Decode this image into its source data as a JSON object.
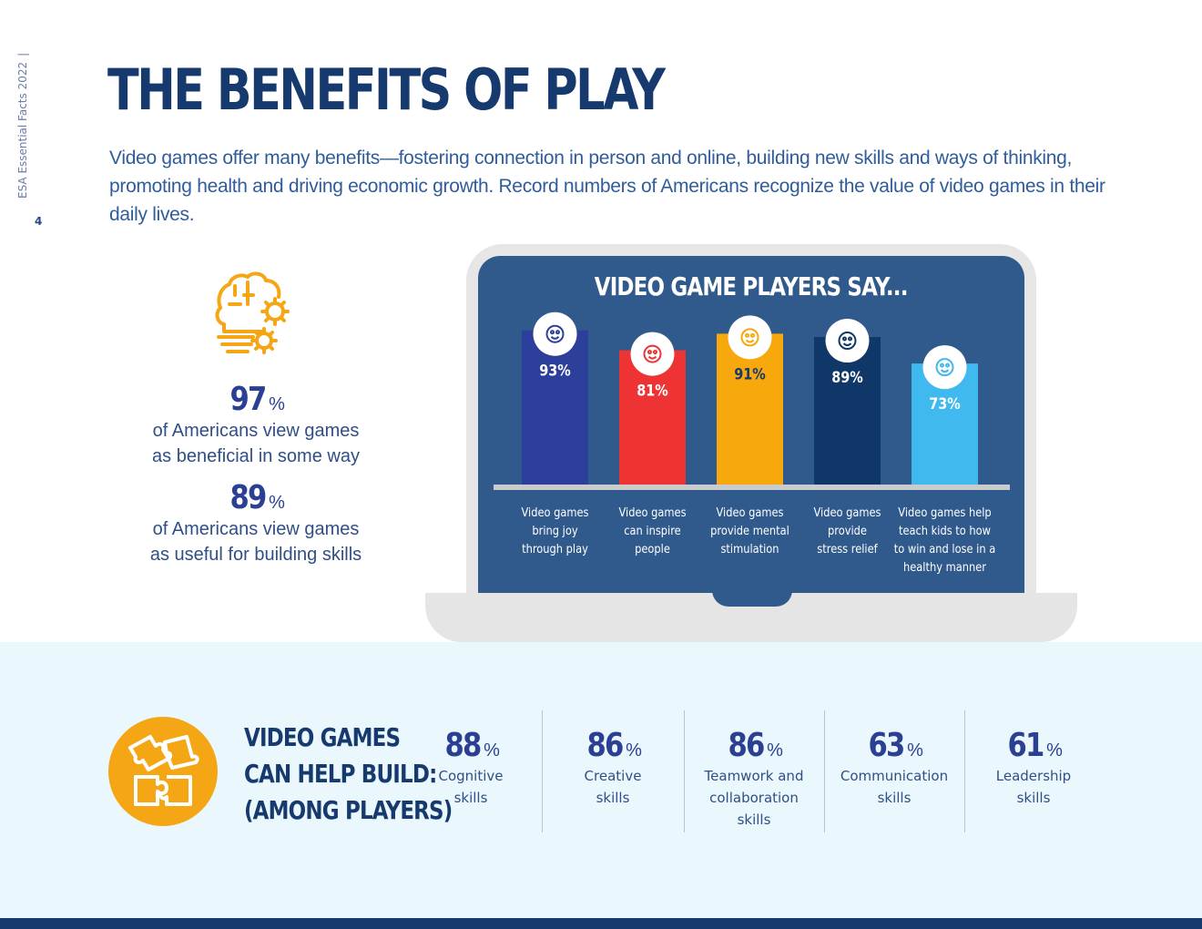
{
  "sidebar": {
    "doc_label": "ESA Essential Facts 2022",
    "page_number": "4"
  },
  "header": {
    "title": "THE BENEFITS OF PLAY",
    "intro": "Video games offer many benefits—fostering connection in person and online, building new skills and ways of thinking, promoting health and driving economic growth. Record numbers of Americans recognize the value of video games in their daily lives."
  },
  "left_stats": [
    {
      "value": "97",
      "unit": "%",
      "line1": "of Americans view games",
      "line2": "as beneficial in some way"
    },
    {
      "value": "89",
      "unit": "%",
      "line1": "of Americans view games",
      "line2": "as useful for building skills"
    }
  ],
  "icons": {
    "brain": "brain-gears-icon",
    "puzzle": "puzzle-pieces-icon"
  },
  "chart_data": {
    "type": "bar",
    "title": "VIDEO GAME PLAYERS SAY...",
    "categories": [
      "Video games bring joy through play",
      "Video games can inspire people",
      "Video games provide mental stimulation",
      "Video games provide stress relief",
      "Video games help teach kids to how to win and lose in a healthy manner"
    ],
    "category_lines": [
      [
        "Video games",
        "bring joy",
        "through play"
      ],
      [
        "Video games",
        "can inspire",
        "people"
      ],
      [
        "Video games",
        "provide mental",
        "stimulation"
      ],
      [
        "Video games",
        "provide",
        "stress relief"
      ],
      [
        "Video games help",
        "teach kids to how",
        "to win and lose in a",
        "healthy manner"
      ]
    ],
    "values": [
      93,
      81,
      91,
      89,
      73
    ],
    "value_labels": [
      "93%",
      "81%",
      "91%",
      "89%",
      "73%"
    ],
    "colors": [
      "#2b3f9b",
      "#ee3335",
      "#f6a80d",
      "#0f3768",
      "#40b9ef"
    ],
    "icons": [
      "joy-icon",
      "inspire-icon",
      "mental-gears-icon",
      "stress-relief-icon",
      "kids-icon"
    ],
    "xlabel": "",
    "ylabel": "",
    "ylim": [
      0,
      100
    ]
  },
  "skills_section": {
    "title_lines": [
      "VIDEO GAMES",
      "CAN HELP BUILD:",
      "(AMONG PLAYERS)"
    ],
    "items": [
      {
        "value": "88",
        "unit": "%",
        "line1": "Cognitive",
        "line2": "skills",
        "line3": ""
      },
      {
        "value": "86",
        "unit": "%",
        "line1": "Creative",
        "line2": "skills",
        "line3": ""
      },
      {
        "value": "86",
        "unit": "%",
        "line1": "Teamwork and",
        "line2": "collaboration",
        "line3": "skills"
      },
      {
        "value": "63",
        "unit": "%",
        "line1": "Communication",
        "line2": "skills",
        "line3": ""
      },
      {
        "value": "61",
        "unit": "%",
        "line1": "Leadership",
        "line2": "skills",
        "line3": ""
      }
    ]
  }
}
